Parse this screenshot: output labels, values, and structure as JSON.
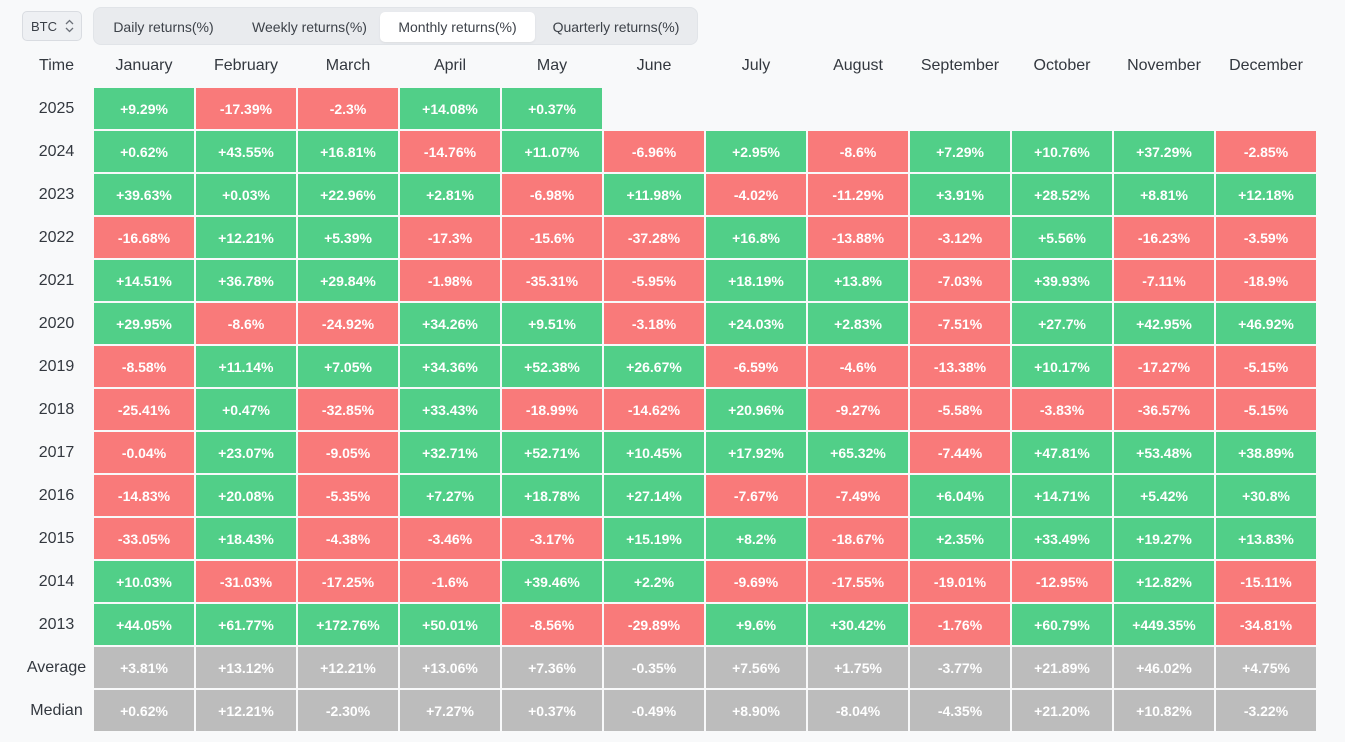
{
  "asset": "BTC",
  "tabs": [
    {
      "label": "Daily returns(%)",
      "active": false
    },
    {
      "label": "Weekly returns(%)",
      "active": false
    },
    {
      "label": "Monthly returns(%)",
      "active": true
    },
    {
      "label": "Quarterly returns(%)",
      "active": false
    }
  ],
  "table": {
    "time_header": "Time",
    "months": [
      "January",
      "February",
      "March",
      "April",
      "May",
      "June",
      "July",
      "August",
      "September",
      "October",
      "November",
      "December"
    ],
    "rows": [
      {
        "label": "2025",
        "values": [
          "+9.29%",
          "-17.39%",
          "-2.3%",
          "+14.08%",
          "+0.37%",
          "",
          "",
          "",
          "",
          "",
          "",
          ""
        ]
      },
      {
        "label": "2024",
        "values": [
          "+0.62%",
          "+43.55%",
          "+16.81%",
          "-14.76%",
          "+11.07%",
          "-6.96%",
          "+2.95%",
          "-8.6%",
          "+7.29%",
          "+10.76%",
          "+37.29%",
          "-2.85%"
        ]
      },
      {
        "label": "2023",
        "values": [
          "+39.63%",
          "+0.03%",
          "+22.96%",
          "+2.81%",
          "-6.98%",
          "+11.98%",
          "-4.02%",
          "-11.29%",
          "+3.91%",
          "+28.52%",
          "+8.81%",
          "+12.18%"
        ]
      },
      {
        "label": "2022",
        "values": [
          "-16.68%",
          "+12.21%",
          "+5.39%",
          "-17.3%",
          "-15.6%",
          "-37.28%",
          "+16.8%",
          "-13.88%",
          "-3.12%",
          "+5.56%",
          "-16.23%",
          "-3.59%"
        ]
      },
      {
        "label": "2021",
        "values": [
          "+14.51%",
          "+36.78%",
          "+29.84%",
          "-1.98%",
          "-35.31%",
          "-5.95%",
          "+18.19%",
          "+13.8%",
          "-7.03%",
          "+39.93%",
          "-7.11%",
          "-18.9%"
        ]
      },
      {
        "label": "2020",
        "values": [
          "+29.95%",
          "-8.6%",
          "-24.92%",
          "+34.26%",
          "+9.51%",
          "-3.18%",
          "+24.03%",
          "+2.83%",
          "-7.51%",
          "+27.7%",
          "+42.95%",
          "+46.92%"
        ]
      },
      {
        "label": "2019",
        "values": [
          "-8.58%",
          "+11.14%",
          "+7.05%",
          "+34.36%",
          "+52.38%",
          "+26.67%",
          "-6.59%",
          "-4.6%",
          "-13.38%",
          "+10.17%",
          "-17.27%",
          "-5.15%"
        ]
      },
      {
        "label": "2018",
        "values": [
          "-25.41%",
          "+0.47%",
          "-32.85%",
          "+33.43%",
          "-18.99%",
          "-14.62%",
          "+20.96%",
          "-9.27%",
          "-5.58%",
          "-3.83%",
          "-36.57%",
          "-5.15%"
        ]
      },
      {
        "label": "2017",
        "values": [
          "-0.04%",
          "+23.07%",
          "-9.05%",
          "+32.71%",
          "+52.71%",
          "+10.45%",
          "+17.92%",
          "+65.32%",
          "-7.44%",
          "+47.81%",
          "+53.48%",
          "+38.89%"
        ]
      },
      {
        "label": "2016",
        "values": [
          "-14.83%",
          "+20.08%",
          "-5.35%",
          "+7.27%",
          "+18.78%",
          "+27.14%",
          "-7.67%",
          "-7.49%",
          "+6.04%",
          "+14.71%",
          "+5.42%",
          "+30.8%"
        ]
      },
      {
        "label": "2015",
        "values": [
          "-33.05%",
          "+18.43%",
          "-4.38%",
          "-3.46%",
          "-3.17%",
          "+15.19%",
          "+8.2%",
          "-18.67%",
          "+2.35%",
          "+33.49%",
          "+19.27%",
          "+13.83%"
        ]
      },
      {
        "label": "2014",
        "values": [
          "+10.03%",
          "-31.03%",
          "-17.25%",
          "-1.6%",
          "+39.46%",
          "+2.2%",
          "-9.69%",
          "-17.55%",
          "-19.01%",
          "-12.95%",
          "+12.82%",
          "-15.11%"
        ]
      },
      {
        "label": "2013",
        "values": [
          "+44.05%",
          "+61.77%",
          "+172.76%",
          "+50.01%",
          "-8.56%",
          "-29.89%",
          "+9.6%",
          "+30.42%",
          "-1.76%",
          "+60.79%",
          "+449.35%",
          "-34.81%"
        ]
      }
    ],
    "summary": [
      {
        "label": "Average",
        "values": [
          "+3.81%",
          "+13.12%",
          "+12.21%",
          "+13.06%",
          "+7.36%",
          "-0.35%",
          "+7.56%",
          "+1.75%",
          "-3.77%",
          "+21.89%",
          "+46.02%",
          "+4.75%"
        ]
      },
      {
        "label": "Median",
        "values": [
          "+0.62%",
          "+12.21%",
          "-2.30%",
          "+7.27%",
          "+0.37%",
          "-0.49%",
          "+8.90%",
          "-8.04%",
          "-4.35%",
          "+21.20%",
          "+10.82%",
          "-3.22%"
        ]
      }
    ]
  },
  "colors": {
    "positive": "#51cf88",
    "negative": "#f97a7a",
    "summary": "#bcbcbc"
  },
  "icons": {
    "asset_select": "chevron-up-down-icon"
  }
}
